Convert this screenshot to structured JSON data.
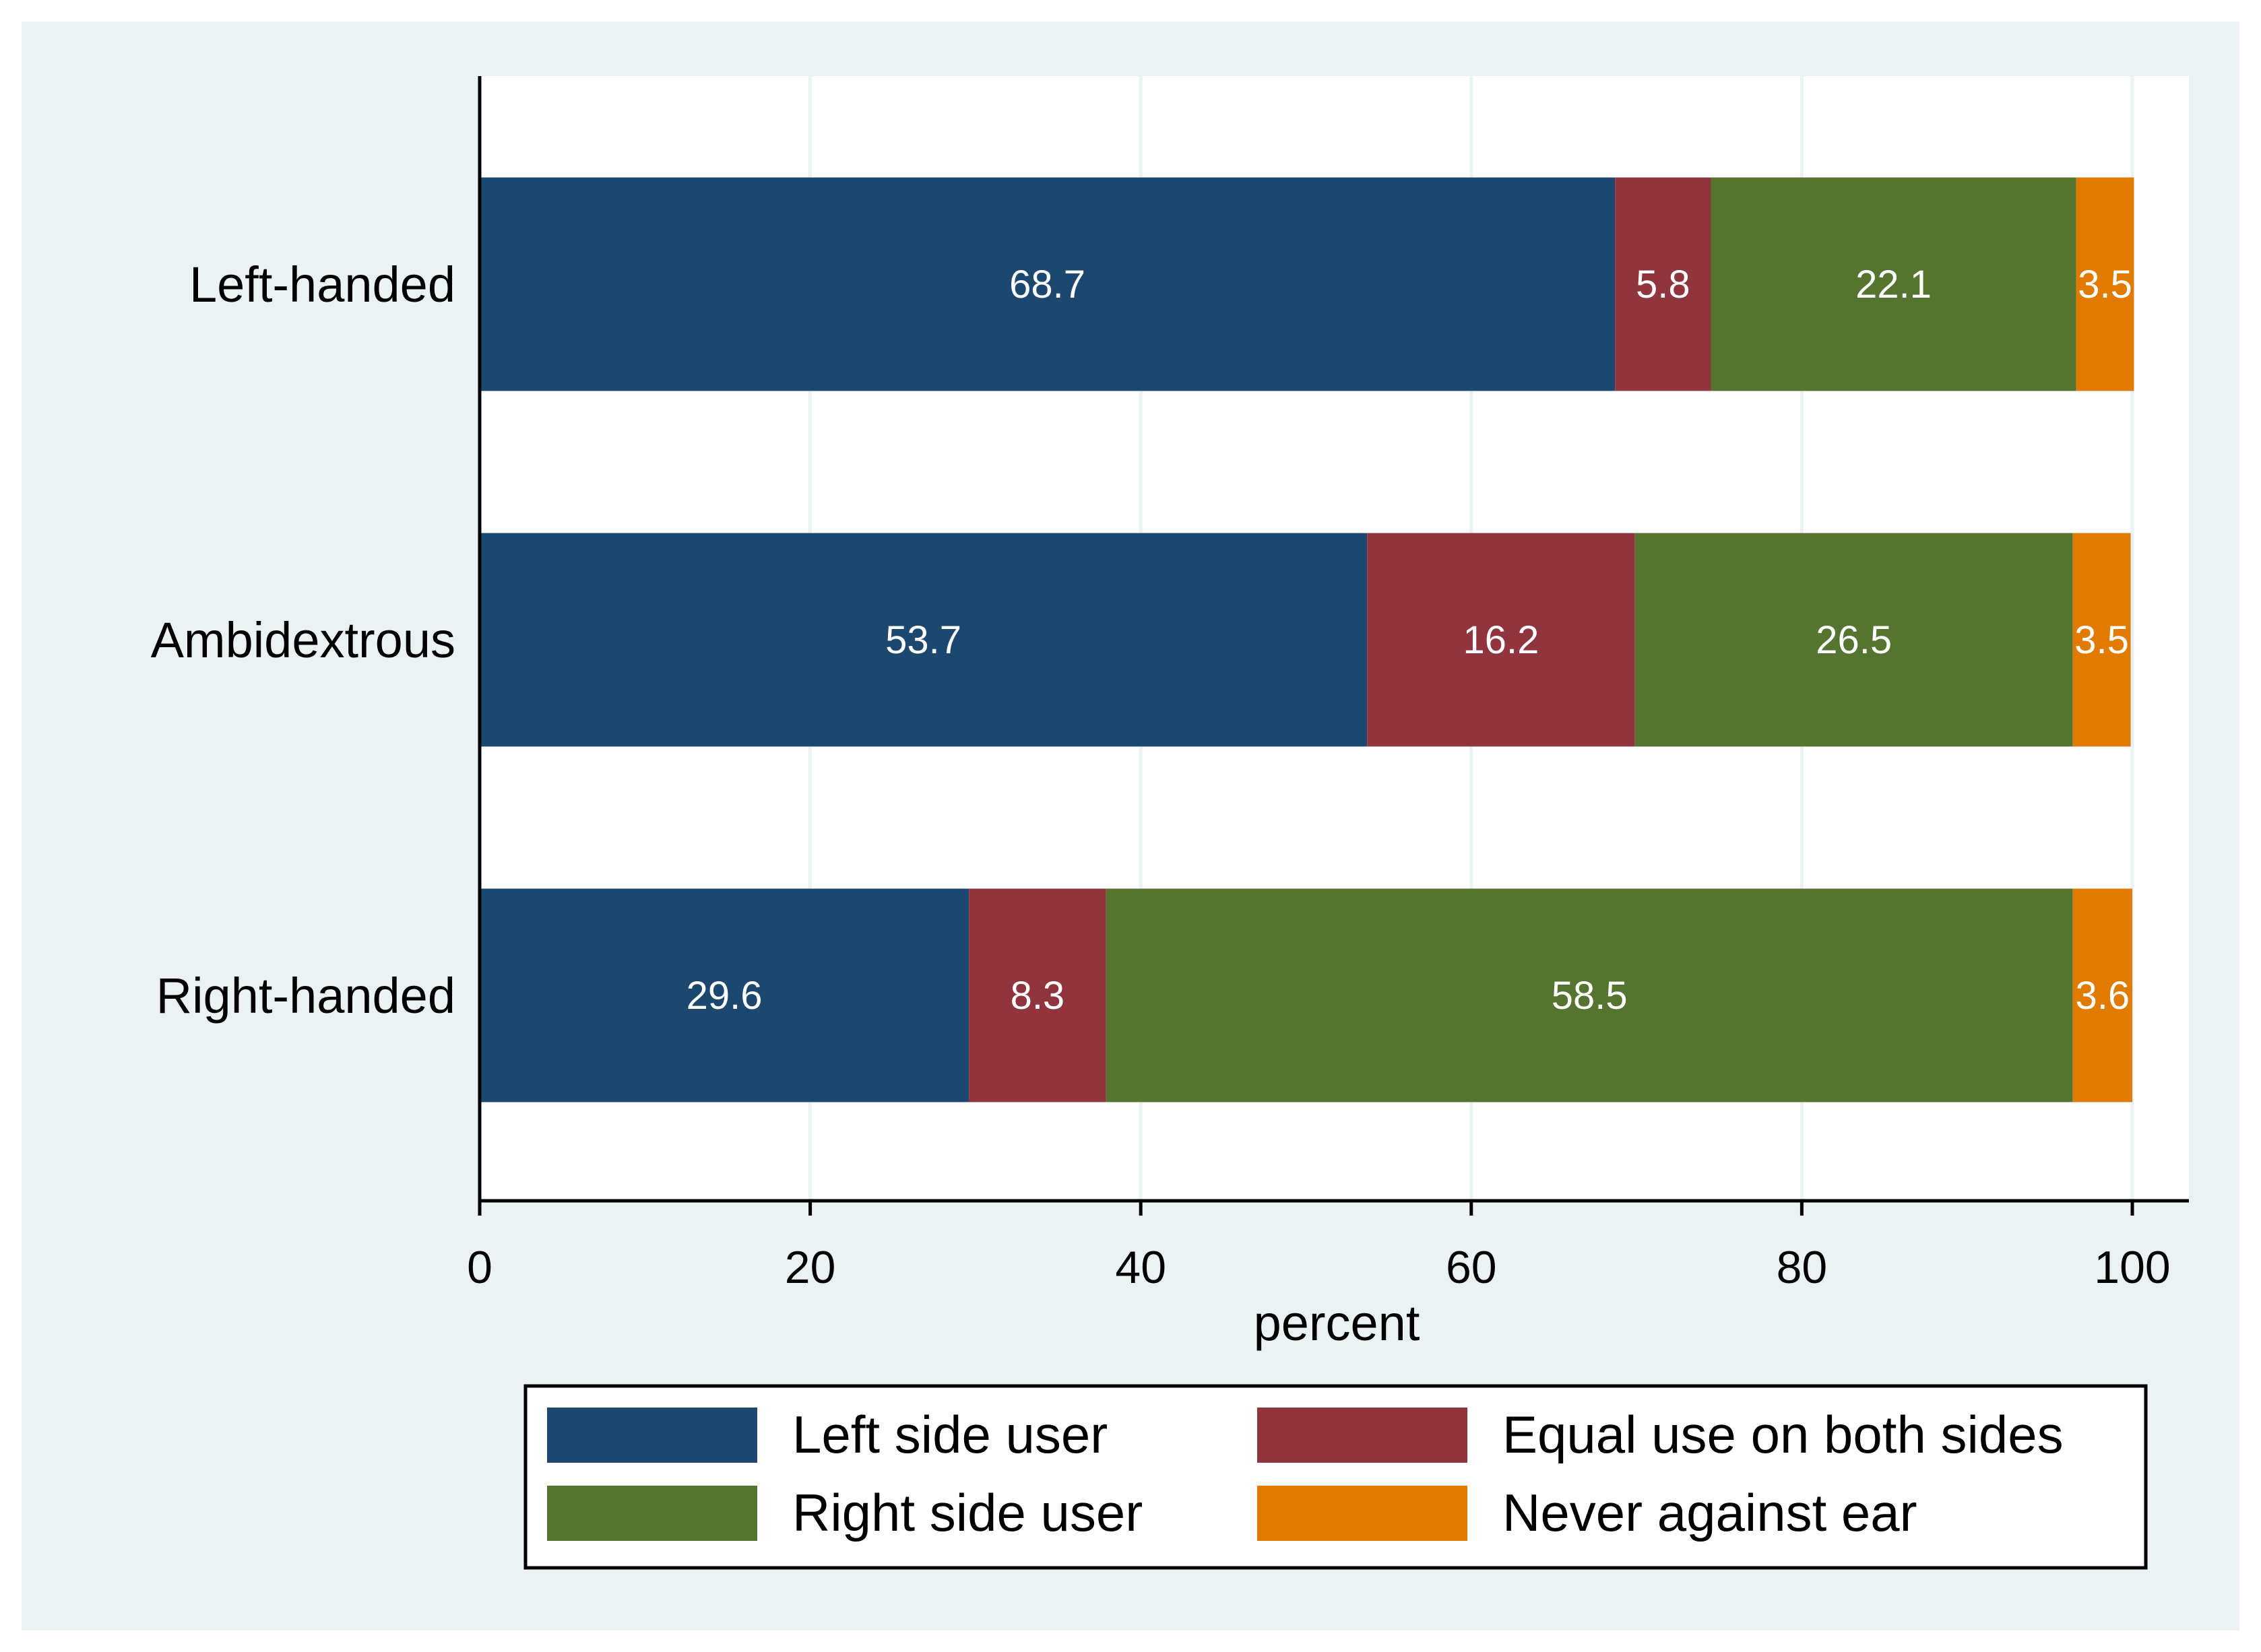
{
  "chart_data": {
    "type": "bar",
    "orientation": "horizontal",
    "stacked": true,
    "title": "",
    "xlabel": "percent",
    "ylabel": "",
    "xlim": [
      0,
      100
    ],
    "xticks": [
      0,
      20,
      40,
      60,
      80,
      100
    ],
    "grid": true,
    "legend_position": "bottom",
    "categories": [
      "Left-handed",
      "Ambidextrous",
      "Right-handed"
    ],
    "series": [
      {
        "name": "Left side user",
        "color": "#1c4870",
        "values": [
          68.7,
          53.7,
          29.6
        ],
        "labels": [
          "68.7",
          "53.7",
          "29.6"
        ]
      },
      {
        "name": "Equal use on both sides",
        "color": "#90353d",
        "values": [
          5.8,
          16.2,
          8.3
        ],
        "labels": [
          "5.8",
          "16.2",
          "8.3"
        ]
      },
      {
        "name": "Right side user",
        "color": "#55742f",
        "values": [
          22.1,
          26.5,
          58.5
        ],
        "labels": [
          "22.1",
          "26.5",
          "58.5"
        ]
      },
      {
        "name": "Never against ear",
        "color": "#e07b00",
        "values": [
          3.5,
          3.5,
          3.6
        ],
        "labels": [
          "3.5",
          "3.5",
          "3.6"
        ]
      }
    ],
    "background_color": "#eaf2f3",
    "plot_background_color": "#ffffff",
    "grid_color": "#eaf2f3"
  }
}
